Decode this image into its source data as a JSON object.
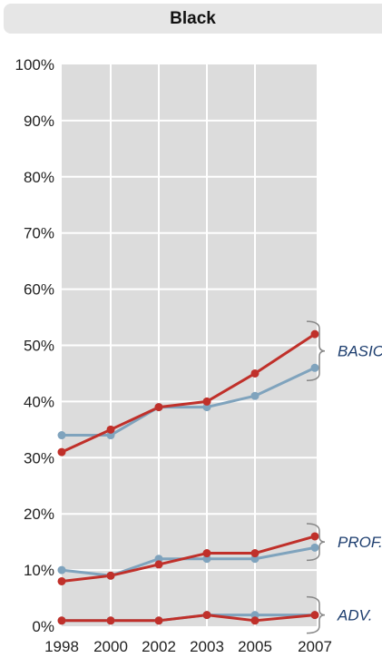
{
  "chart_data": {
    "type": "line",
    "title": "Black",
    "x": [
      "1998",
      "2000",
      "2002",
      "2003",
      "2005",
      "2007"
    ],
    "y_ticks": [
      "0%",
      "10%",
      "20%",
      "30%",
      "40%",
      "50%",
      "60%",
      "70%",
      "80%",
      "90%",
      "100%"
    ],
    "ylim": [
      0,
      100
    ],
    "grid": true,
    "series": [
      {
        "group": "BASIC",
        "color": "#7fa3bd",
        "values": [
          34,
          34,
          39,
          39,
          41,
          46
        ]
      },
      {
        "group": "BASIC",
        "color": "#c0302a",
        "values": [
          31,
          35,
          39,
          40,
          45,
          52
        ]
      },
      {
        "group": "PROF.",
        "color": "#7fa3bd",
        "values": [
          10,
          9,
          12,
          12,
          12,
          14
        ]
      },
      {
        "group": "PROF.",
        "color": "#c0302a",
        "values": [
          8,
          9,
          11,
          13,
          13,
          16
        ]
      },
      {
        "group": "ADV.",
        "color": "#7fa3bd",
        "values": [
          1,
          1,
          1,
          2,
          2,
          2
        ]
      },
      {
        "group": "ADV.",
        "color": "#c0302a",
        "values": [
          1,
          1,
          1,
          2,
          1,
          2
        ]
      }
    ],
    "annotations": [
      "BASIC",
      "PROF.",
      "ADV."
    ]
  }
}
